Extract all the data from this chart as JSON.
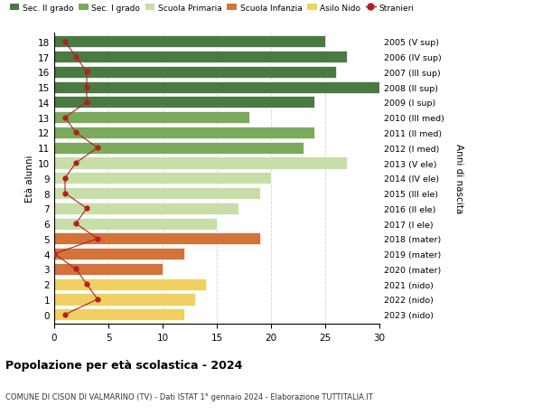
{
  "ages": [
    18,
    17,
    16,
    15,
    14,
    13,
    12,
    11,
    10,
    9,
    8,
    7,
    6,
    5,
    4,
    3,
    2,
    1,
    0
  ],
  "right_labels": [
    "2005 (V sup)",
    "2006 (IV sup)",
    "2007 (III sup)",
    "2008 (II sup)",
    "2009 (I sup)",
    "2010 (III med)",
    "2011 (II med)",
    "2012 (I med)",
    "2013 (V ele)",
    "2014 (IV ele)",
    "2015 (III ele)",
    "2016 (II ele)",
    "2017 (I ele)",
    "2018 (mater)",
    "2019 (mater)",
    "2020 (mater)",
    "2021 (nido)",
    "2022 (nido)",
    "2023 (nido)"
  ],
  "bar_values": [
    25,
    27,
    26,
    30,
    24,
    18,
    24,
    23,
    27,
    20,
    19,
    17,
    15,
    19,
    12,
    10,
    14,
    13,
    12
  ],
  "bar_colors": [
    "#4a7a42",
    "#4a7a42",
    "#4a7a42",
    "#4a7a42",
    "#4a7a42",
    "#7aaa5a",
    "#7aaa5a",
    "#7aaa5a",
    "#c8dea8",
    "#c8dea8",
    "#c8dea8",
    "#c8dea8",
    "#c8dea8",
    "#d2733a",
    "#d2733a",
    "#d2733a",
    "#f0d060",
    "#f0d060",
    "#f0d060"
  ],
  "stranieri_values": [
    1,
    2,
    3,
    3,
    3,
    1,
    2,
    4,
    2,
    1,
    1,
    3,
    2,
    4,
    0,
    2,
    3,
    4,
    1
  ],
  "legend_labels": [
    "Sec. II grado",
    "Sec. I grado",
    "Scuola Primaria",
    "Scuola Infanzia",
    "Asilo Nido",
    "Stranieri"
  ],
  "legend_colors": [
    "#4a7a42",
    "#7aaa5a",
    "#c8dea8",
    "#d2733a",
    "#f0d060",
    "#b22020"
  ],
  "title": "Popolazione per età scolastica - 2024",
  "subtitle": "COMUNE DI CISON DI VALMARINO (TV) - Dati ISTAT 1° gennaio 2024 - Elaborazione TUTTITALIA.IT",
  "ylabel": "Età alunni",
  "right_ylabel": "Anni di nascita",
  "xlim": [
    0,
    30
  ],
  "xticks": [
    0,
    5,
    10,
    15,
    20,
    25,
    30
  ],
  "bar_height": 0.78,
  "dot_color": "#b22020",
  "line_color": "#b22020",
  "bg_color": "#ffffff",
  "grid_color": "#cccccc"
}
